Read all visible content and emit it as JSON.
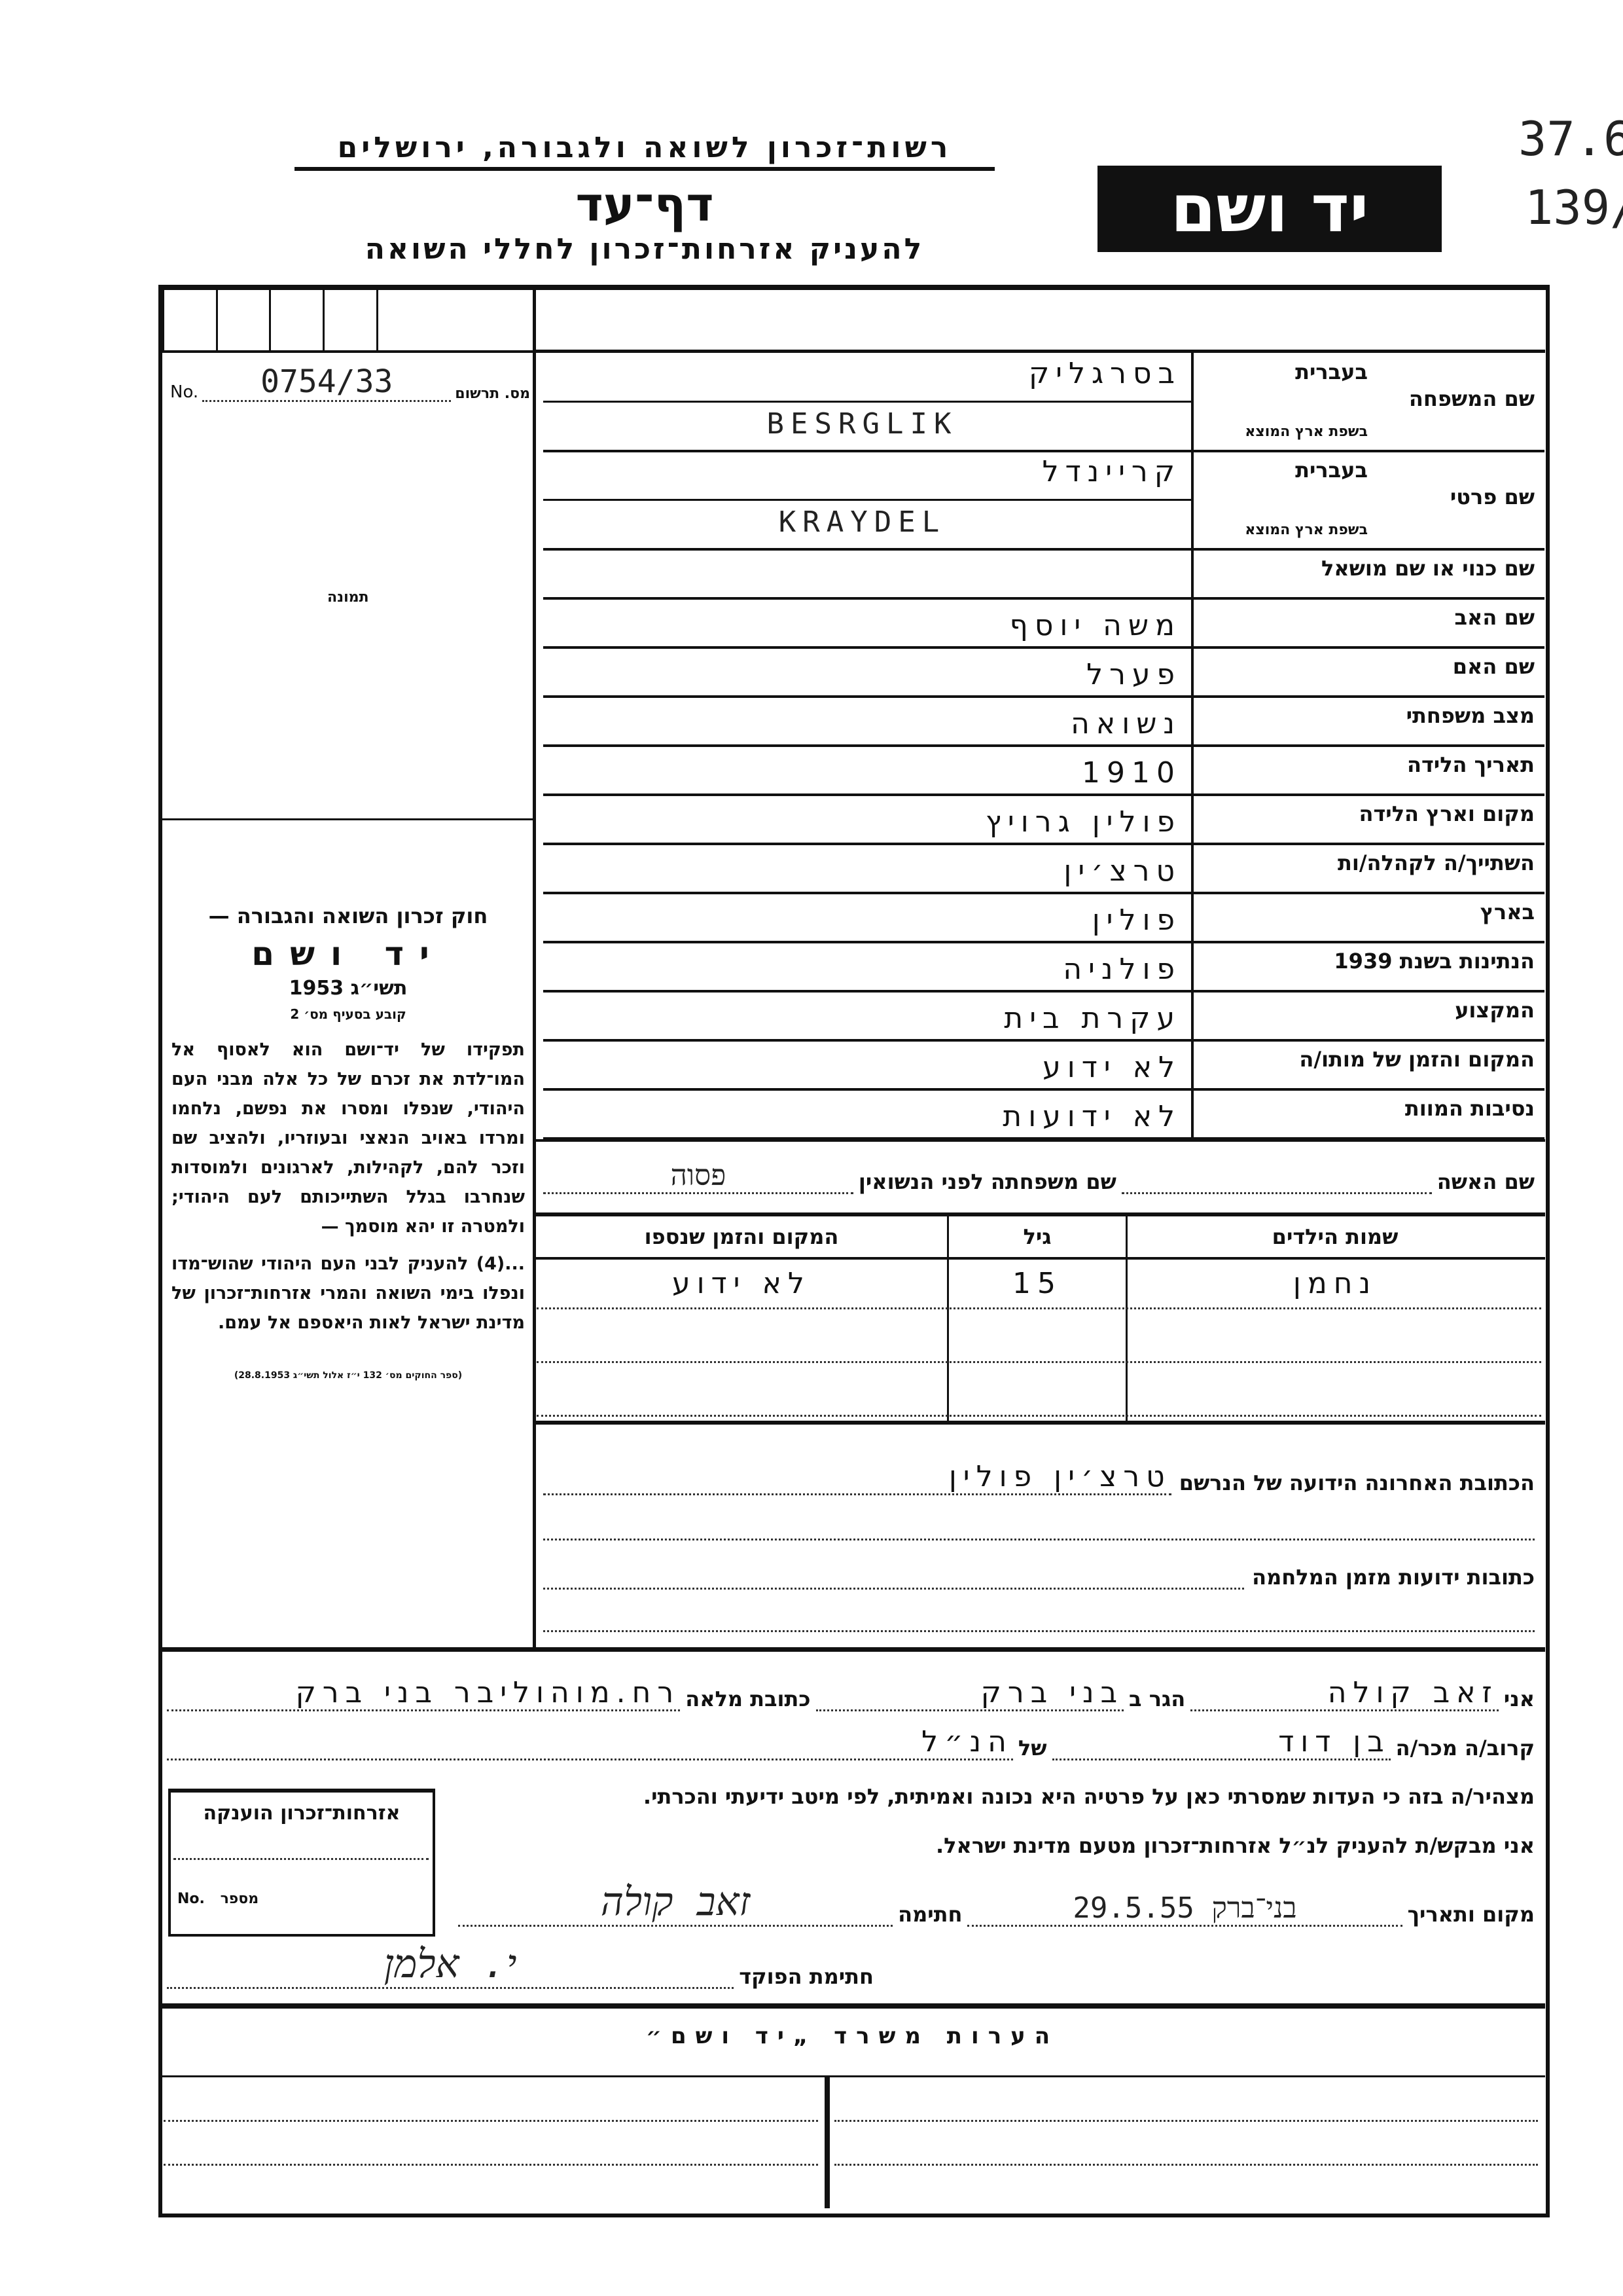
{
  "header": {
    "org": "רשות־זכרון לשואה ולגבורה, ירושלים",
    "title": "דף־עד",
    "subtitle": "להעניק אזרחות־זכרון לחללי השואה",
    "logo_text": "יד ושם",
    "handwritten_ref_1": "37.6",
    "handwritten_ref_2": "139/"
  },
  "registration": {
    "no_label": "No.",
    "number": "0754/33",
    "label": "מס. תרשום",
    "photo_label": "תמונה"
  },
  "fields": [
    {
      "label": "שם המשפחה",
      "sub1": "בעברית",
      "value1": "בסרגליק",
      "sub2": "בשפת ארץ המוצא",
      "value2": "BESRGLIK"
    },
    {
      "label": "שם פרטי",
      "sub1": "בעברית",
      "value1": "קריינדל",
      "sub2": "בשפת ארץ המוצא",
      "value2": "KRAYDEL"
    },
    {
      "label": "שם כנוי או שם מושאל",
      "value": ""
    },
    {
      "label": "שם האב",
      "value": "משה יוסף"
    },
    {
      "label": "שם האם",
      "value": "פערל"
    },
    {
      "label": "מצב משפחתי",
      "value": "נשואה"
    },
    {
      "label": "תאריך הלידה",
      "value": "1910"
    },
    {
      "label": "מקום וארץ הלידה",
      "value": "פולין גרויץ"
    },
    {
      "label": "השתייך/ה לקהלה/ות",
      "value": "טרצ׳ין"
    },
    {
      "label": "בארץ",
      "value": "פולין"
    },
    {
      "label": "הנתינות בשנת 1939",
      "value": "פולניה"
    },
    {
      "label": "המקצוע",
      "value": "עקרת בית"
    },
    {
      "label": "המקום והזמן של מותו/ה",
      "value": "לא ידוע"
    },
    {
      "label": "נסיבות המוות",
      "value": "לא ידועות"
    }
  ],
  "law": {
    "line1": "חוק זכרון השואה והגבורה —",
    "name": "יד ושם",
    "year": "תשי״ג 1953",
    "section": "קובע בסעיף מס׳ 2",
    "para1": "תפקידו של יד־ושם הוא לאסוף אל המו־לדת את זכרם של כל אלה מבני העם היהודי, שנפלו ומסרו את נפשם, נלחמו ומרדו באויב הנאצי ובעוזריו, ולהציב שם וזכר להם, לקהילות, לארגונים ולמוסדות שנחרבו בגלל השתייכותם לעם היהודי; ולמטרה זו יהא מוסמך —",
    "para2": "...(4) להעניק לבני העם היהודי שהוש־מדו ונפלו בימי השואה והמרי אזרחות־זכרון של מדינת ישראל לאות היאספם אל עמם.",
    "source": "(ספר החוקים מס׳ 132 י״ז אלול תשי״ג 28.8.1953)"
  },
  "wife": {
    "label": "שם האשה",
    "maiden_label": "שם משפחתה לפני הנשואין",
    "maiden_value": "פסוה"
  },
  "children": {
    "headers": [
      "שמות הילדים",
      "גיל",
      "המקום והזמן שנספו"
    ],
    "rows": [
      [
        "נחמן",
        "15",
        "לא ידוע"
      ],
      [
        "",
        "",
        ""
      ],
      [
        "",
        "",
        ""
      ]
    ]
  },
  "address": {
    "last_label": "הכתובת האחרונה הידועה של הנרשם",
    "last_value": "טרצ׳ין פולין",
    "war_label": "כתובות ידועות מזמן המלחמה"
  },
  "declarant": {
    "i_label": "אני",
    "name": "זאב קולה",
    "resides_label": "הגר ב",
    "resides_value": "בני ברק",
    "address_label": "כתובת מלאה",
    "address_value": "רח.מוהוליבר בני ברק",
    "relative_label": "קרוב/ה מכר/ה",
    "relative_value": "בן דוד",
    "of_label": "של",
    "of_value": "הנ״ל",
    "declare_text": "מצהיר/ה בזה כי העדות שמסרתי כאן על פרטיה היא נכונה ואמיתית, לפי מיטב ידיעתי והכרתי.",
    "request_text": "אני מבקש/ת להעניק לנ״ל אזרחות־זכרון מטעם מדינת ישראל.",
    "place_date_label": "מקום ותאריך",
    "place_date_value": "בני־ברק 29.5.55",
    "signature_label": "חתימה",
    "signature_value": "זאב קולה",
    "official_label": "חתימת הפוקד",
    "official_signature": "י. אלמן"
  },
  "stamp_box": {
    "title": "אזרחות־זכרון הוענקה",
    "no_label": "No.",
    "number_label": "מספר"
  },
  "remarks": {
    "title": "הערות משרד „יד ושם״"
  }
}
